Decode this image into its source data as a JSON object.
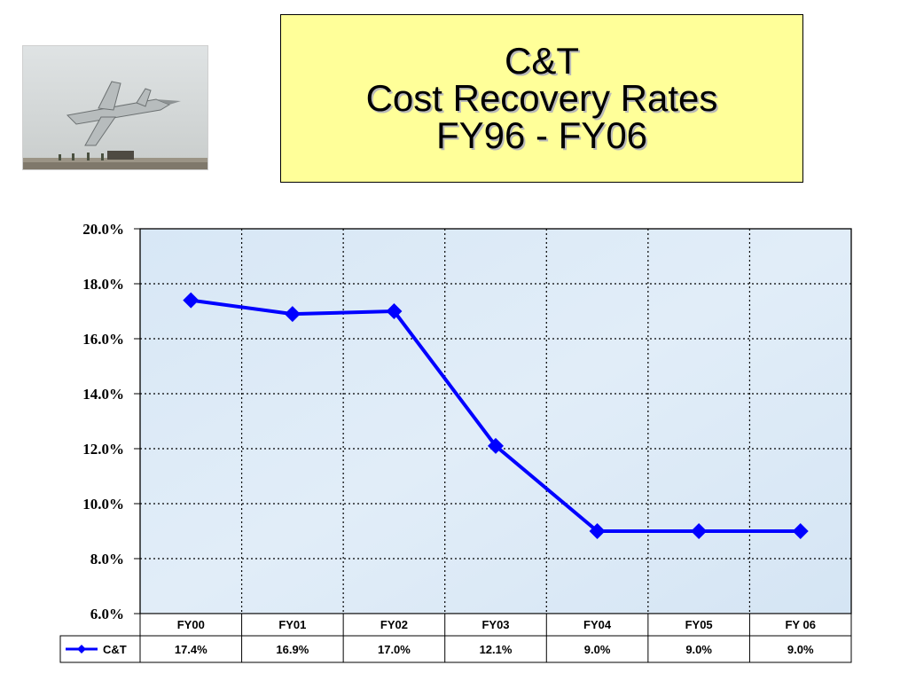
{
  "title": {
    "line1": "C&T",
    "line2": "Cost Recovery Rates",
    "line3": "FY96 - FY06"
  },
  "photo_icon": "fighter-jet-photo",
  "chart_data": {
    "type": "line",
    "categories": [
      "FY00",
      "FY01",
      "FY02",
      "FY03",
      "FY04",
      "FY05",
      "FY 06"
    ],
    "series": [
      {
        "name": "C&T",
        "values": [
          17.4,
          16.9,
          17.0,
          12.1,
          9.0,
          9.0,
          9.0
        ],
        "labels": [
          "17.4%",
          "16.9%",
          "17.0%",
          "12.1%",
          "9.0%",
          "9.0%",
          "9.0%"
        ],
        "color": "#0000ff",
        "marker": "diamond"
      }
    ],
    "ylim": [
      6.0,
      20.0
    ],
    "yticks": [
      20.0,
      18.0,
      16.0,
      14.0,
      12.0,
      10.0,
      8.0,
      6.0
    ],
    "ytick_labels": [
      "20.0%",
      "18.0%",
      "16.0%",
      "14.0%",
      "12.0%",
      "10.0%",
      "8.0%",
      "6.0%"
    ],
    "grid": true,
    "data_table": true,
    "plot_background": "#dbe9f6"
  }
}
